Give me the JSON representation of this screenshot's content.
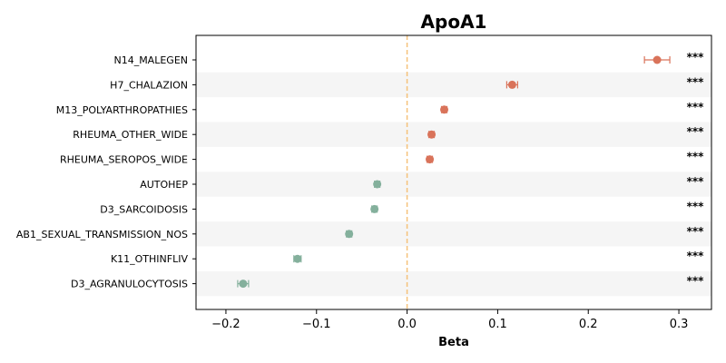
{
  "chart_data": {
    "type": "scatter",
    "title": "ApoA1",
    "xlabel": "Beta",
    "ylabel": "",
    "xlim": [
      -0.233,
      0.336
    ],
    "xticks": [
      -0.2,
      -0.1,
      0.0,
      0.1,
      0.2,
      0.3
    ],
    "xtick_labels": [
      "−0.2",
      "−0.1",
      "0.0",
      "0.1",
      "0.2",
      "0.3"
    ],
    "reference_line": 0.0,
    "reference_line_color": "#f5c27a",
    "positive_color": "#d9735a",
    "negative_color": "#84b09c",
    "stripe_color": "#f5f5f5",
    "grid": false,
    "points": [
      {
        "label": "N14_MALEGEN",
        "beta": 0.276,
        "ci_low": 0.262,
        "ci_high": 0.29,
        "sig": "***"
      },
      {
        "label": "H7_CHALAZION",
        "beta": 0.116,
        "ci_low": 0.11,
        "ci_high": 0.122,
        "sig": "***"
      },
      {
        "label": "M13_POLYARTHROPATHIES",
        "beta": 0.041,
        "ci_low": 0.038,
        "ci_high": 0.044,
        "sig": "***"
      },
      {
        "label": "RHEUMA_OTHER_WIDE",
        "beta": 0.027,
        "ci_low": 0.024,
        "ci_high": 0.03,
        "sig": "***"
      },
      {
        "label": "RHEUMA_SEROPOS_WIDE",
        "beta": 0.025,
        "ci_low": 0.022,
        "ci_high": 0.028,
        "sig": "***"
      },
      {
        "label": "AUTOHEP",
        "beta": -0.033,
        "ci_low": -0.036,
        "ci_high": -0.03,
        "sig": "***"
      },
      {
        "label": "D3_SARCOIDOSIS",
        "beta": -0.036,
        "ci_low": -0.039,
        "ci_high": -0.033,
        "sig": "***"
      },
      {
        "label": "AB1_SEXUAL_TRANSMISSION_NOS",
        "beta": -0.064,
        "ci_low": -0.067,
        "ci_high": -0.061,
        "sig": "***"
      },
      {
        "label": "K11_OTHINFLIV",
        "beta": -0.121,
        "ci_low": -0.125,
        "ci_high": -0.117,
        "sig": "***"
      },
      {
        "label": "D3_AGRANULOCYTOSIS",
        "beta": -0.181,
        "ci_low": -0.187,
        "ci_high": -0.175,
        "sig": "***"
      }
    ]
  }
}
